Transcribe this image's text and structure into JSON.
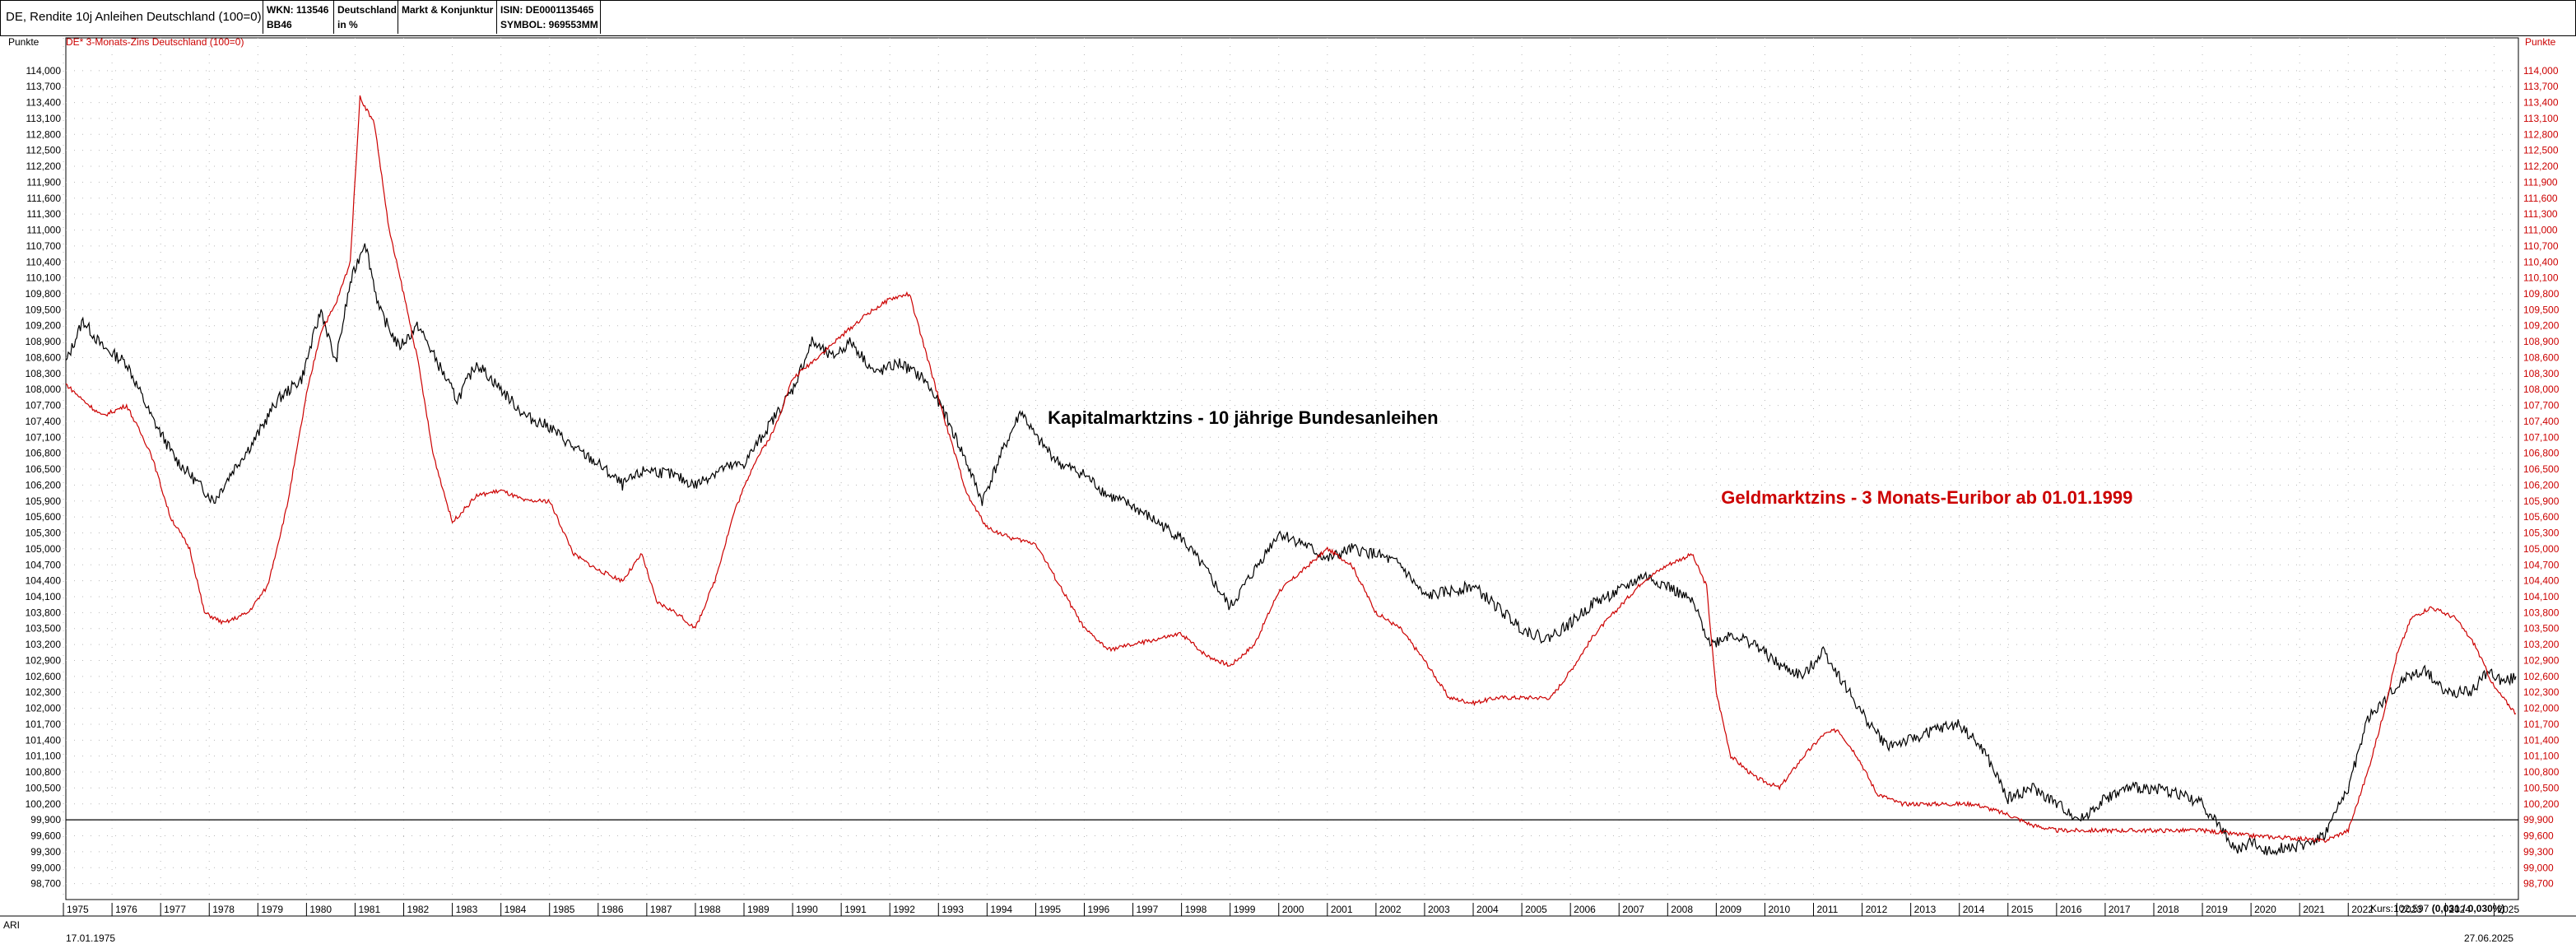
{
  "header": {
    "title": "DE, Rendite 10j Anleihen Deutschland (100=0)",
    "cells": [
      {
        "line1": "WKN: 113546",
        "line2": "BB46"
      },
      {
        "line1": "Deutschland",
        "line2": "in %"
      },
      {
        "line1": "Markt & Konjunktur",
        "line2": ""
      },
      {
        "line1": "ISIN: DE0001135465",
        "line2": "SYMBOL: 969553MM"
      }
    ]
  },
  "left_unit": "Punkte",
  "right_unit": "Punkte",
  "legend_secondary": "DE* 3-Monats-Zins Deutschland (100=0)",
  "footer": {
    "series_code": "ARI",
    "start_date": "17.01.1975",
    "end_date": "27.06.2025",
    "kurs_label": "Kurs:102,597",
    "kurs_change": "(0,031 / 0,030%)"
  },
  "colors": {
    "bund": "#000000",
    "euribor": "#cc0000",
    "grid": "#b8b8b8",
    "annotation_black": "#000000",
    "annotation_red": "#cc0000"
  },
  "chart_data": {
    "type": "line",
    "title": "DE, Rendite 10j Anleihen Deutschland (100=0)",
    "ylabel": "Punkte",
    "ylim": [
      98.4,
      114.4
    ],
    "xlim": [
      1975.05,
      2025.5
    ],
    "yticks": [
      "114,000",
      "113,700",
      "113,400",
      "113,100",
      "112,800",
      "112,500",
      "112,200",
      "111,900",
      "111,600",
      "111,300",
      "111,000",
      "110,700",
      "110,400",
      "110,100",
      "109,800",
      "109,500",
      "109,200",
      "108,900",
      "108,600",
      "108,300",
      "108,000",
      "107,700",
      "107,400",
      "107,100",
      "106,800",
      "106,500",
      "106,200",
      "105,900",
      "105,600",
      "105,300",
      "105,000",
      "104,700",
      "104,400",
      "104,100",
      "103,800",
      "103,500",
      "103,200",
      "102,900",
      "102,600",
      "102,300",
      "102,000",
      "101,700",
      "101,400",
      "101,100",
      "100,800",
      "100,500",
      "100,200",
      "99,900",
      "99,600",
      "99,300",
      "99,000",
      "98,700"
    ],
    "xticks": [
      "1975",
      "1976",
      "1977",
      "1978",
      "1979",
      "1980",
      "1981",
      "1982",
      "1983",
      "1984",
      "1985",
      "1986",
      "1987",
      "1988",
      "1989",
      "1990",
      "1991",
      "1992",
      "1993",
      "1994",
      "1995",
      "1996",
      "1997",
      "1998",
      "1999",
      "2000",
      "2001",
      "2002",
      "2003",
      "2004",
      "2005",
      "2006",
      "2007",
      "2008",
      "2009",
      "2010",
      "2011",
      "2012",
      "2013",
      "2014",
      "2015",
      "2016",
      "2017",
      "2018",
      "2019",
      "2020",
      "2021",
      "2022",
      "2023",
      "2024",
      "2025"
    ],
    "reference_line": 99.9,
    "grid": true,
    "annotations": [
      {
        "text": "Kapitalmarktzins - 10 jährige Bundesanleihen",
        "x": 1995.25,
        "y": 107.35,
        "color": "#000000"
      },
      {
        "text": "Geldmarktzins - 3 Monats-Euribor ab 01.01.1999",
        "x": 2009.1,
        "y": 105.85,
        "color": "#cc0000"
      }
    ],
    "series": [
      {
        "name": "DE, Rendite 10j Anleihen Deutschland (100=0)",
        "color": "#000000",
        "points": [
          [
            1975.05,
            108.5
          ],
          [
            1975.4,
            109.3
          ],
          [
            1975.8,
            108.8
          ],
          [
            1976.3,
            108.5
          ],
          [
            1976.8,
            107.5
          ],
          [
            1977.3,
            106.7
          ],
          [
            1977.7,
            106.3
          ],
          [
            1978.1,
            105.9
          ],
          [
            1978.5,
            106.5
          ],
          [
            1978.9,
            107.0
          ],
          [
            1979.4,
            107.8
          ],
          [
            1979.9,
            108.2
          ],
          [
            1980.3,
            109.5
          ],
          [
            1980.6,
            108.5
          ],
          [
            1980.9,
            110.0
          ],
          [
            1981.2,
            110.8
          ],
          [
            1981.5,
            109.5
          ],
          [
            1981.9,
            108.8
          ],
          [
            1982.3,
            109.2
          ],
          [
            1982.7,
            108.5
          ],
          [
            1983.1,
            107.8
          ],
          [
            1983.5,
            108.5
          ],
          [
            1984.0,
            108.0
          ],
          [
            1984.5,
            107.5
          ],
          [
            1985.0,
            107.3
          ],
          [
            1985.5,
            106.9
          ],
          [
            1986.0,
            106.6
          ],
          [
            1986.5,
            106.2
          ],
          [
            1987.0,
            106.5
          ],
          [
            1987.5,
            106.4
          ],
          [
            1988.0,
            106.2
          ],
          [
            1988.5,
            106.5
          ],
          [
            1989.0,
            106.6
          ],
          [
            1989.5,
            107.3
          ],
          [
            1990.0,
            108.0
          ],
          [
            1990.4,
            108.9
          ],
          [
            1990.8,
            108.6
          ],
          [
            1991.2,
            108.9
          ],
          [
            1991.7,
            108.3
          ],
          [
            1992.2,
            108.5
          ],
          [
            1992.7,
            108.2
          ],
          [
            1993.1,
            107.6
          ],
          [
            1993.5,
            106.8
          ],
          [
            1993.9,
            105.9
          ],
          [
            1994.3,
            106.8
          ],
          [
            1994.7,
            107.6
          ],
          [
            1995.0,
            107.1
          ],
          [
            1995.5,
            106.6
          ],
          [
            1996.0,
            106.4
          ],
          [
            1996.5,
            106.0
          ],
          [
            1997.0,
            105.8
          ],
          [
            1997.5,
            105.5
          ],
          [
            1998.0,
            105.2
          ],
          [
            1998.5,
            104.6
          ],
          [
            1999.0,
            103.9
          ],
          [
            1999.5,
            104.6
          ],
          [
            2000.0,
            105.3
          ],
          [
            2000.5,
            105.1
          ],
          [
            2001.0,
            104.8
          ],
          [
            2001.5,
            105.0
          ],
          [
            2002.0,
            104.9
          ],
          [
            2002.5,
            104.7
          ],
          [
            2003.0,
            104.1
          ],
          [
            2003.5,
            104.2
          ],
          [
            2004.0,
            104.3
          ],
          [
            2004.5,
            103.9
          ],
          [
            2005.0,
            103.5
          ],
          [
            2005.5,
            103.3
          ],
          [
            2006.0,
            103.6
          ],
          [
            2006.5,
            104.0
          ],
          [
            2007.0,
            104.2
          ],
          [
            2007.5,
            104.5
          ],
          [
            2008.0,
            104.3
          ],
          [
            2008.5,
            104.0
          ],
          [
            2008.9,
            103.2
          ],
          [
            2009.3,
            103.4
          ],
          [
            2009.8,
            103.2
          ],
          [
            2010.3,
            102.8
          ],
          [
            2010.8,
            102.6
          ],
          [
            2011.2,
            103.1
          ],
          [
            2011.6,
            102.5
          ],
          [
            2012.0,
            101.9
          ],
          [
            2012.5,
            101.3
          ],
          [
            2013.0,
            101.4
          ],
          [
            2013.5,
            101.6
          ],
          [
            2014.0,
            101.7
          ],
          [
            2014.5,
            101.2
          ],
          [
            2015.0,
            100.3
          ],
          [
            2015.5,
            100.5
          ],
          [
            2016.0,
            100.2
          ],
          [
            2016.5,
            99.9
          ],
          [
            2017.0,
            100.3
          ],
          [
            2017.5,
            100.5
          ],
          [
            2018.0,
            100.5
          ],
          [
            2018.5,
            100.4
          ],
          [
            2019.0,
            100.2
          ],
          [
            2019.5,
            99.6
          ],
          [
            2019.7,
            99.3
          ],
          [
            2020.0,
            99.5
          ],
          [
            2020.3,
            99.3
          ],
          [
            2020.7,
            99.4
          ],
          [
            2021.0,
            99.4
          ],
          [
            2021.5,
            99.6
          ],
          [
            2022.0,
            100.5
          ],
          [
            2022.4,
            101.8
          ],
          [
            2022.8,
            102.2
          ],
          [
            2023.2,
            102.6
          ],
          [
            2023.6,
            102.7
          ],
          [
            2024.0,
            102.3
          ],
          [
            2024.5,
            102.3
          ],
          [
            2024.9,
            102.7
          ],
          [
            2025.2,
            102.5
          ],
          [
            2025.45,
            102.6
          ]
        ]
      },
      {
        "name": "DE* 3-Monats-Zins Deutschland (100=0)",
        "color": "#cc0000",
        "points": [
          [
            1975.05,
            108.1
          ],
          [
            1975.4,
            107.8
          ],
          [
            1975.8,
            107.5
          ],
          [
            1976.3,
            107.7
          ],
          [
            1976.8,
            106.8
          ],
          [
            1977.2,
            105.6
          ],
          [
            1977.6,
            105.0
          ],
          [
            1977.9,
            103.8
          ],
          [
            1978.3,
            103.6
          ],
          [
            1978.8,
            103.8
          ],
          [
            1979.2,
            104.3
          ],
          [
            1979.6,
            105.8
          ],
          [
            1980.0,
            107.9
          ],
          [
            1980.3,
            109.1
          ],
          [
            1980.6,
            109.6
          ],
          [
            1980.9,
            110.4
          ],
          [
            1981.1,
            113.5
          ],
          [
            1981.4,
            113.0
          ],
          [
            1981.7,
            111.0
          ],
          [
            1982.0,
            109.8
          ],
          [
            1982.3,
            108.5
          ],
          [
            1982.6,
            106.8
          ],
          [
            1983.0,
            105.5
          ],
          [
            1983.5,
            106.0
          ],
          [
            1984.0,
            106.1
          ],
          [
            1984.5,
            105.9
          ],
          [
            1985.0,
            105.9
          ],
          [
            1985.5,
            104.9
          ],
          [
            1986.0,
            104.6
          ],
          [
            1986.5,
            104.4
          ],
          [
            1986.9,
            104.9
          ],
          [
            1987.2,
            104.0
          ],
          [
            1987.6,
            103.8
          ],
          [
            1988.0,
            103.5
          ],
          [
            1988.4,
            104.4
          ],
          [
            1988.8,
            105.7
          ],
          [
            1989.2,
            106.6
          ],
          [
            1989.6,
            107.2
          ],
          [
            1990.0,
            108.2
          ],
          [
            1990.5,
            108.6
          ],
          [
            1991.0,
            109.0
          ],
          [
            1991.5,
            109.4
          ],
          [
            1992.0,
            109.7
          ],
          [
            1992.4,
            109.8
          ],
          [
            1992.8,
            108.5
          ],
          [
            1993.2,
            107.2
          ],
          [
            1993.6,
            106.0
          ],
          [
            1994.0,
            105.4
          ],
          [
            1994.5,
            105.2
          ],
          [
            1995.0,
            105.1
          ],
          [
            1995.5,
            104.3
          ],
          [
            1996.0,
            103.5
          ],
          [
            1996.5,
            103.1
          ],
          [
            1997.0,
            103.2
          ],
          [
            1997.5,
            103.3
          ],
          [
            1998.0,
            103.4
          ],
          [
            1998.5,
            103.0
          ],
          [
            1999.0,
            102.8
          ],
          [
            1999.5,
            103.2
          ],
          [
            2000.0,
            104.2
          ],
          [
            2000.5,
            104.6
          ],
          [
            2001.0,
            105.0
          ],
          [
            2001.5,
            104.7
          ],
          [
            2002.0,
            103.8
          ],
          [
            2002.5,
            103.5
          ],
          [
            2003.0,
            102.9
          ],
          [
            2003.5,
            102.2
          ],
          [
            2004.0,
            102.1
          ],
          [
            2004.5,
            102.2
          ],
          [
            2005.0,
            102.2
          ],
          [
            2005.6,
            102.2
          ],
          [
            2006.0,
            102.7
          ],
          [
            2006.5,
            103.4
          ],
          [
            2007.0,
            103.9
          ],
          [
            2007.5,
            104.4
          ],
          [
            2008.0,
            104.7
          ],
          [
            2008.5,
            104.9
          ],
          [
            2008.8,
            104.3
          ],
          [
            2009.0,
            102.3
          ],
          [
            2009.3,
            101.1
          ],
          [
            2009.8,
            100.7
          ],
          [
            2010.3,
            100.5
          ],
          [
            2010.8,
            101.1
          ],
          [
            2011.2,
            101.5
          ],
          [
            2011.5,
            101.6
          ],
          [
            2011.9,
            101.1
          ],
          [
            2012.3,
            100.4
          ],
          [
            2012.8,
            100.2
          ],
          [
            2013.5,
            100.2
          ],
          [
            2014.3,
            100.2
          ],
          [
            2015.0,
            100.0
          ],
          [
            2015.5,
            99.8
          ],
          [
            2016.0,
            99.7
          ],
          [
            2017.0,
            99.7
          ],
          [
            2018.0,
            99.7
          ],
          [
            2019.0,
            99.7
          ],
          [
            2020.0,
            99.6
          ],
          [
            2021.0,
            99.55
          ],
          [
            2021.5,
            99.5
          ],
          [
            2022.0,
            99.7
          ],
          [
            2022.4,
            100.8
          ],
          [
            2022.7,
            101.8
          ],
          [
            2023.0,
            103.0
          ],
          [
            2023.3,
            103.7
          ],
          [
            2023.7,
            103.9
          ],
          [
            2024.2,
            103.7
          ],
          [
            2024.6,
            103.2
          ],
          [
            2025.0,
            102.4
          ],
          [
            2025.45,
            101.9
          ]
        ]
      }
    ]
  }
}
